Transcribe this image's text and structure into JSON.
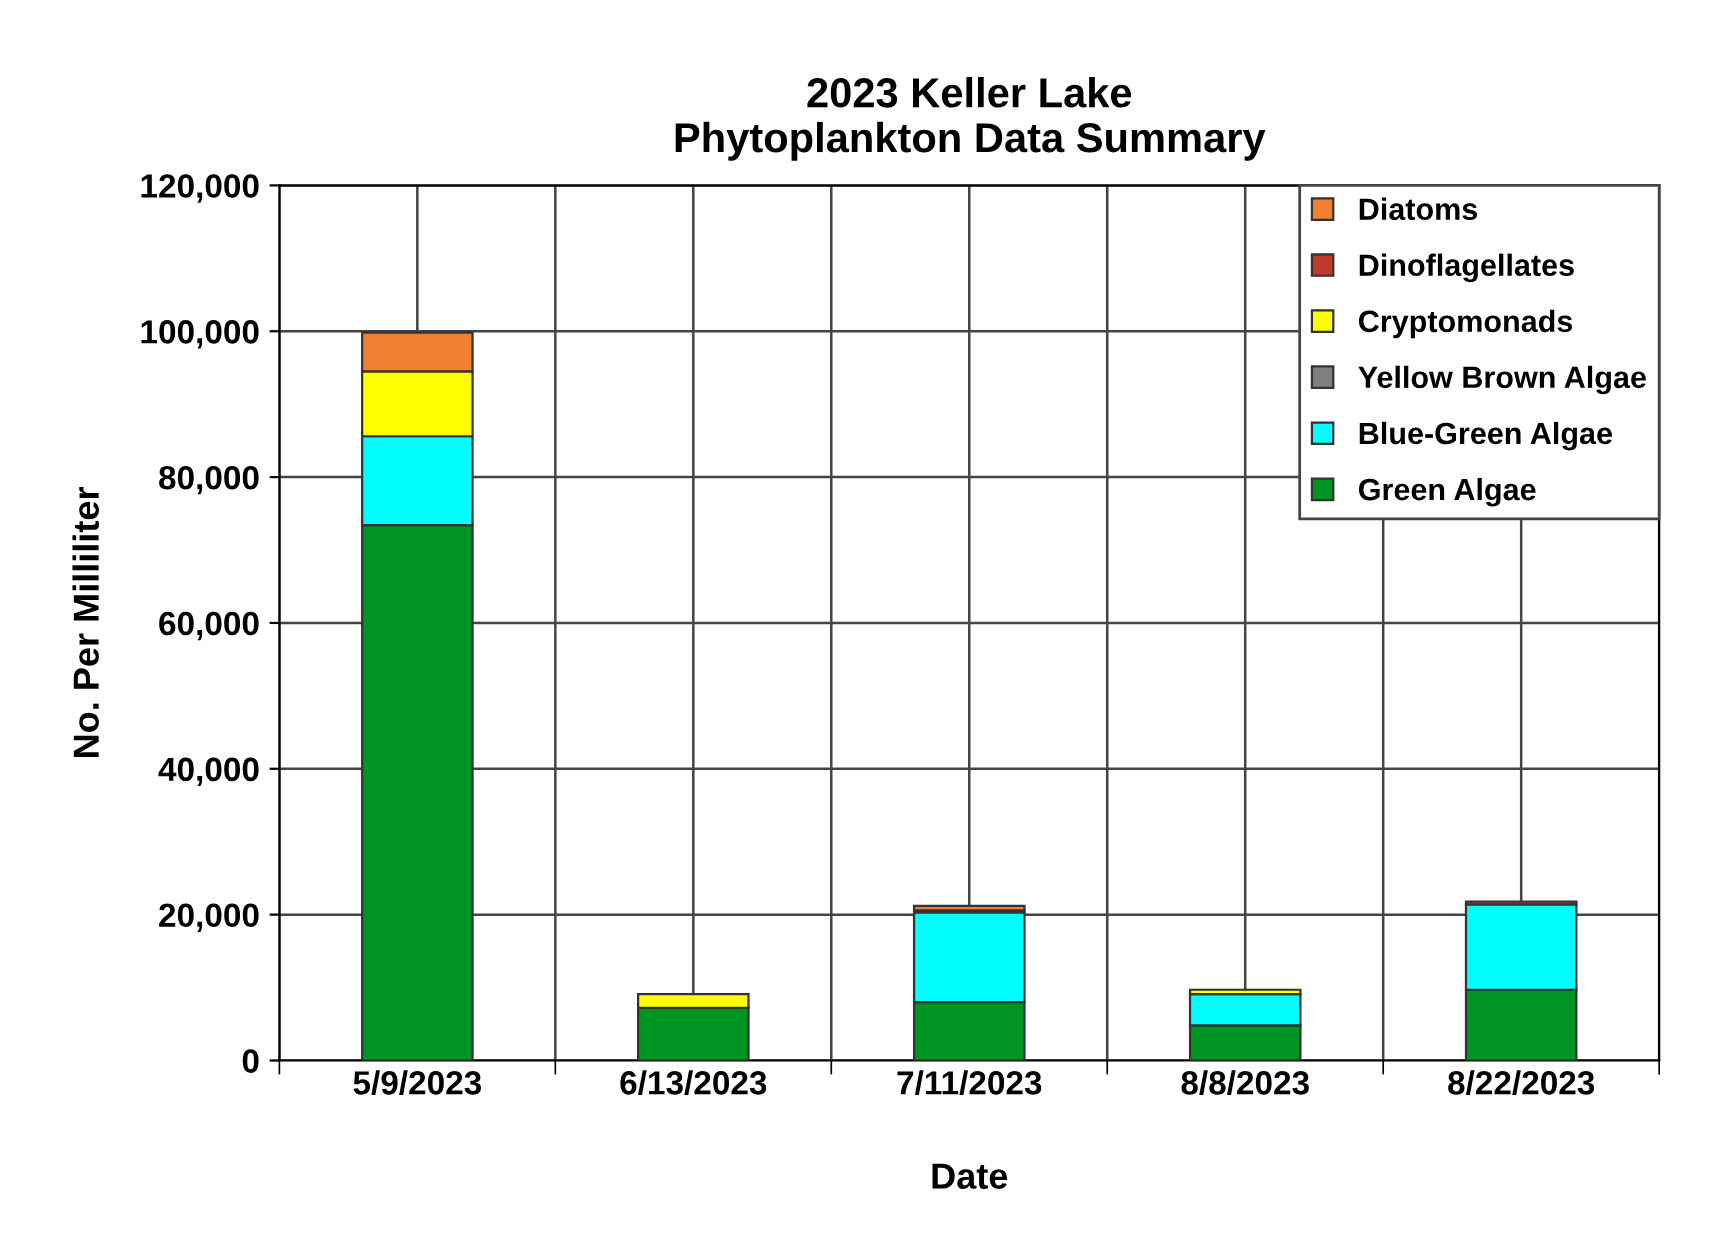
{
  "chart_data": {
    "type": "bar",
    "title": "2023 Keller Lake\nPhytoplankton Data Summary",
    "xlabel": "Date",
    "ylabel": "No. Per Milliliter",
    "categories": [
      "5/9/2023",
      "6/13/2023",
      "7/11/2023",
      "8/8/2023",
      "8/22/2023"
    ],
    "stacked": true,
    "series": [
      {
        "name": "Green Algae",
        "color": "#009422",
        "values": [
          73400,
          7200,
          8000,
          4800,
          9700
        ]
      },
      {
        "name": "Blue-Green Algae",
        "color": "#00ffff",
        "values": [
          12200,
          null,
          12300,
          4300,
          11700
        ]
      },
      {
        "name": "Yellow Brown Algae",
        "color": "#808080",
        "values": [
          null,
          null,
          null,
          null,
          null
        ]
      },
      {
        "name": "Cryptomonads",
        "color": "#ffff00",
        "values": [
          8900,
          1900,
          null,
          600,
          null
        ]
      },
      {
        "name": "Dinoflagellates",
        "color": "#c0392b",
        "values": [
          null,
          null,
          300,
          null,
          400
        ]
      },
      {
        "name": "Diatoms",
        "color": "#f08030",
        "values": [
          5300,
          null,
          600,
          null,
          null
        ]
      }
    ],
    "ylim": [
      0,
      120000
    ],
    "yticks": [
      {
        "value": 0,
        "label": "0"
      },
      {
        "value": 20000,
        "label": "20,000"
      },
      {
        "value": 40000,
        "label": "40,000"
      },
      {
        "value": 60000,
        "label": "60,000"
      },
      {
        "value": 80000,
        "label": "80,000"
      },
      {
        "value": 100000,
        "label": "100,000"
      },
      {
        "value": 120000,
        "label": "120,000"
      }
    ],
    "grid": true,
    "legend": "top right"
  }
}
